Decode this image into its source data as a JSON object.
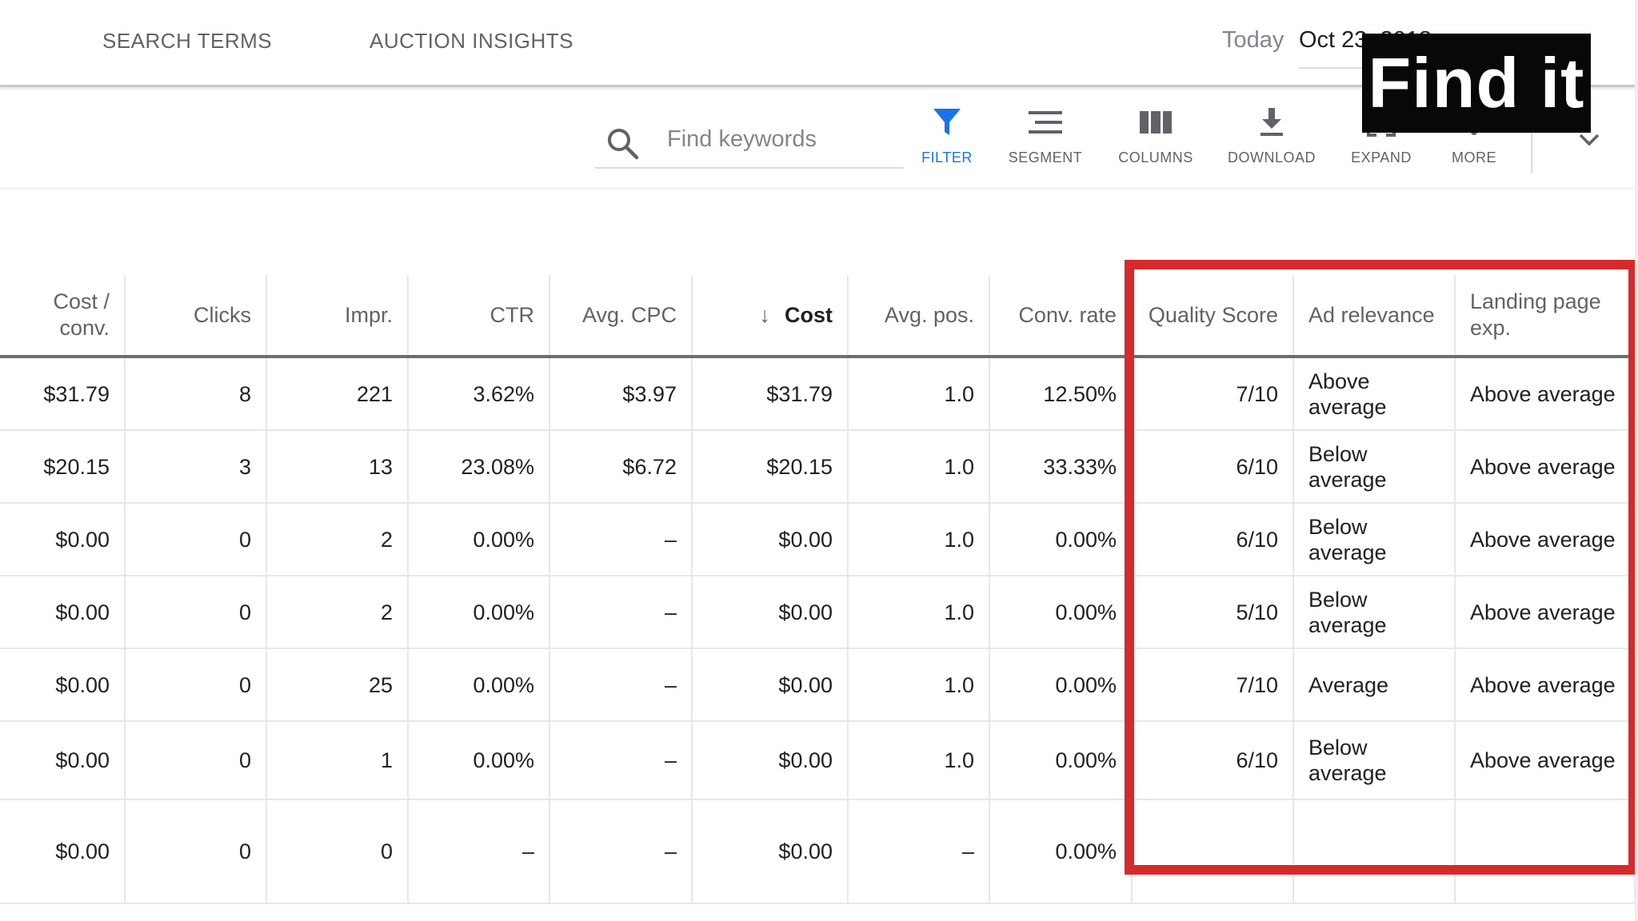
{
  "tabs": [
    {
      "label": "SEARCH TERMS"
    },
    {
      "label": "AUCTION INSIGHTS"
    }
  ],
  "date": {
    "label": "Today",
    "value": "Oct 23, 2018"
  },
  "search": {
    "placeholder": "Find keywords"
  },
  "toolbar": {
    "buttons": [
      {
        "label": "FILTER",
        "icon": "filter-icon",
        "active": true
      },
      {
        "label": "SEGMENT",
        "icon": "segment-icon"
      },
      {
        "label": "COLUMNS",
        "icon": "columns-icon"
      },
      {
        "label": "DOWNLOAD",
        "icon": "download-icon"
      },
      {
        "label": "EXPAND",
        "icon": "expand-icon"
      },
      {
        "label": "MORE",
        "icon": "more-vert-icon"
      }
    ],
    "accent": "#1a73e8"
  },
  "table": {
    "headers": [
      "Cost / conv.",
      "Clicks",
      "Impr.",
      "CTR",
      "Avg. CPC",
      "Cost",
      "Avg. pos.",
      "Conv. rate",
      "Quality Score",
      "Ad relevance",
      "Landing page exp."
    ],
    "sorted_column": "Cost",
    "rows": [
      [
        "$31.79",
        "8",
        "221",
        "3.62%",
        "$3.97",
        "$31.79",
        "1.0",
        "12.50%",
        "7/10",
        "Above average",
        "Above average"
      ],
      [
        "$20.15",
        "3",
        "13",
        "23.08%",
        "$6.72",
        "$20.15",
        "1.0",
        "33.33%",
        "6/10",
        "Below average",
        "Above average"
      ],
      [
        "$0.00",
        "0",
        "2",
        "0.00%",
        "–",
        "$0.00",
        "1.0",
        "0.00%",
        "6/10",
        "Below average",
        "Above average"
      ],
      [
        "$0.00",
        "0",
        "2",
        "0.00%",
        "–",
        "$0.00",
        "1.0",
        "0.00%",
        "5/10",
        "Below average",
        "Above average"
      ],
      [
        "$0.00",
        "0",
        "25",
        "0.00%",
        "–",
        "$0.00",
        "1.0",
        "0.00%",
        "7/10",
        "Average",
        "Above average"
      ],
      [
        "$0.00",
        "0",
        "1",
        "0.00%",
        "–",
        "$0.00",
        "1.0",
        "0.00%",
        "6/10",
        "Below average",
        "Above average"
      ],
      [
        "$0.00",
        "0",
        "0",
        "–",
        "–",
        "$0.00",
        "–",
        "0.00%",
        "",
        "",
        ""
      ]
    ]
  },
  "overlay": {
    "caption": "Find it",
    "highlight_color": "#d62a2a"
  }
}
